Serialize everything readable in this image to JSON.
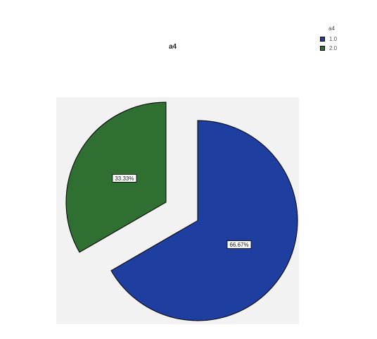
{
  "chart_data": {
    "type": "pie",
    "title": "a4",
    "legend_title": "a4",
    "legend_position": "top-right",
    "slices": [
      {
        "name": "1.0",
        "value": 66.67,
        "label": "66.67%",
        "color": "#1e3fa0",
        "exploded": false
      },
      {
        "name": "2.0",
        "value": 33.33,
        "label": "33.33%",
        "color": "#2f7032",
        "exploded": true
      }
    ],
    "plot_background": "#f2f2f2"
  }
}
